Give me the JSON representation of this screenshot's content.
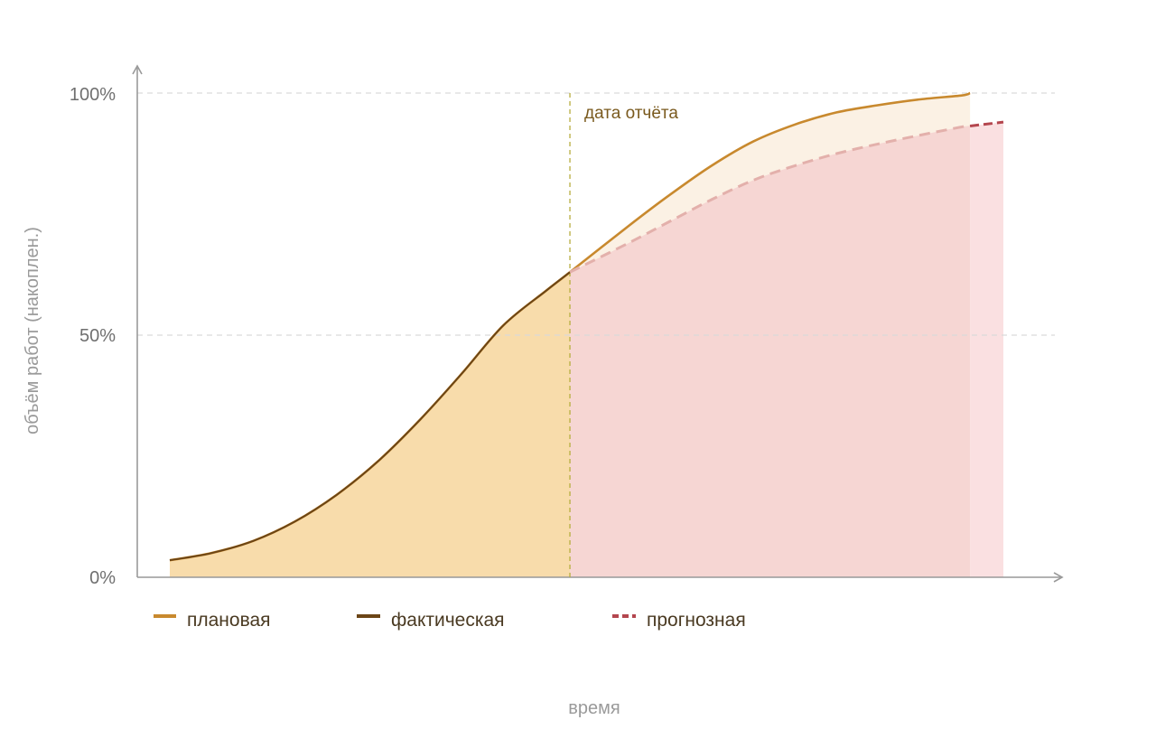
{
  "chart_data": {
    "type": "area",
    "title": "",
    "xlabel": "время",
    "ylabel": "объём работ (накоплен.)",
    "y_ticks": [
      "0%",
      "50%",
      "100%"
    ],
    "ylim": [
      0,
      100
    ],
    "grid": "horizontal dashed at 50% and 100%",
    "report_date_label": "дата отчёта",
    "report_date_x": 0.48,
    "legend_position": "bottom",
    "series": [
      {
        "name": "плановая",
        "color": "#c8892e",
        "line_style": "solid",
        "x": [
          0,
          0.05,
          0.1,
          0.15,
          0.2,
          0.25,
          0.3,
          0.35,
          0.4,
          0.45,
          0.48,
          0.55,
          0.6,
          0.65,
          0.7,
          0.75,
          0.8,
          0.85,
          0.9,
          0.95,
          0.96
        ],
        "values": [
          3.5,
          5,
          7.5,
          11.5,
          17,
          24,
          32.5,
          42,
          52,
          59,
          63,
          72.5,
          79,
          85,
          90,
          93.5,
          96,
          97.5,
          98.7,
          99.5,
          100
        ]
      },
      {
        "name": "фактическая",
        "color": "#6b4516",
        "line_style": "solid",
        "x": [
          0,
          0.05,
          0.1,
          0.15,
          0.2,
          0.25,
          0.3,
          0.35,
          0.4,
          0.45,
          0.48
        ],
        "values": [
          3.5,
          5,
          7.5,
          11.5,
          17,
          24,
          32.5,
          42,
          52,
          59,
          63
        ]
      },
      {
        "name": "прогнозная",
        "color": "#b4464e",
        "line_style": "dashed",
        "x": [
          0.48,
          0.55,
          0.6,
          0.65,
          0.7,
          0.75,
          0.8,
          0.85,
          0.9,
          0.95,
          1.0
        ],
        "values": [
          63,
          69,
          73.5,
          78,
          82,
          85,
          87.5,
          89.5,
          91.3,
          93,
          94
        ]
      }
    ]
  },
  "colors": {
    "planned_fill": "#fbf1e4",
    "actual_fill": "#f8dcab",
    "forecast_fill": "#f6d6d3",
    "forecast_tail_fill": "#fae0e1",
    "grid": "#d9d9d9",
    "axis": "#999999",
    "report_line": "#b7ad3e",
    "forecast_line_faded": "#e3b0ab"
  }
}
